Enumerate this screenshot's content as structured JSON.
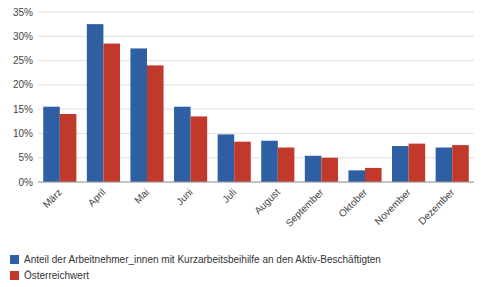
{
  "chart_data": {
    "type": "bar",
    "categories": [
      "März",
      "April",
      "Mai",
      "Juni",
      "Juli",
      "August",
      "September",
      "Oktober",
      "November",
      "Dezember"
    ],
    "series": [
      {
        "name": "Anteil der Arbeitnehmer_innen mit Kurzarbeitsbeihilfe an den Aktiv-Beschäftigten",
        "color": "#2E5FA3",
        "values": [
          15.5,
          32.5,
          27.5,
          15.5,
          9.8,
          8.5,
          5.4,
          2.4,
          7.4,
          7.1
        ]
      },
      {
        "name": "Österreichwert",
        "color": "#C0392B",
        "values": [
          14.0,
          28.5,
          24.0,
          13.5,
          8.3,
          7.1,
          5.0,
          2.9,
          7.9,
          7.6
        ]
      }
    ],
    "ylim": [
      0,
      35
    ],
    "yticks": [
      {
        "value": 0,
        "label": "0%"
      },
      {
        "value": 5,
        "label": "5%"
      },
      {
        "value": 10,
        "label": "10%"
      },
      {
        "value": 15,
        "label": "15%"
      },
      {
        "value": 20,
        "label": "20%"
      },
      {
        "value": 25,
        "label": "25%"
      },
      {
        "value": 30,
        "label": "30%"
      },
      {
        "value": 35,
        "label": "35%"
      }
    ],
    "grid": true,
    "legend": "lower left"
  }
}
